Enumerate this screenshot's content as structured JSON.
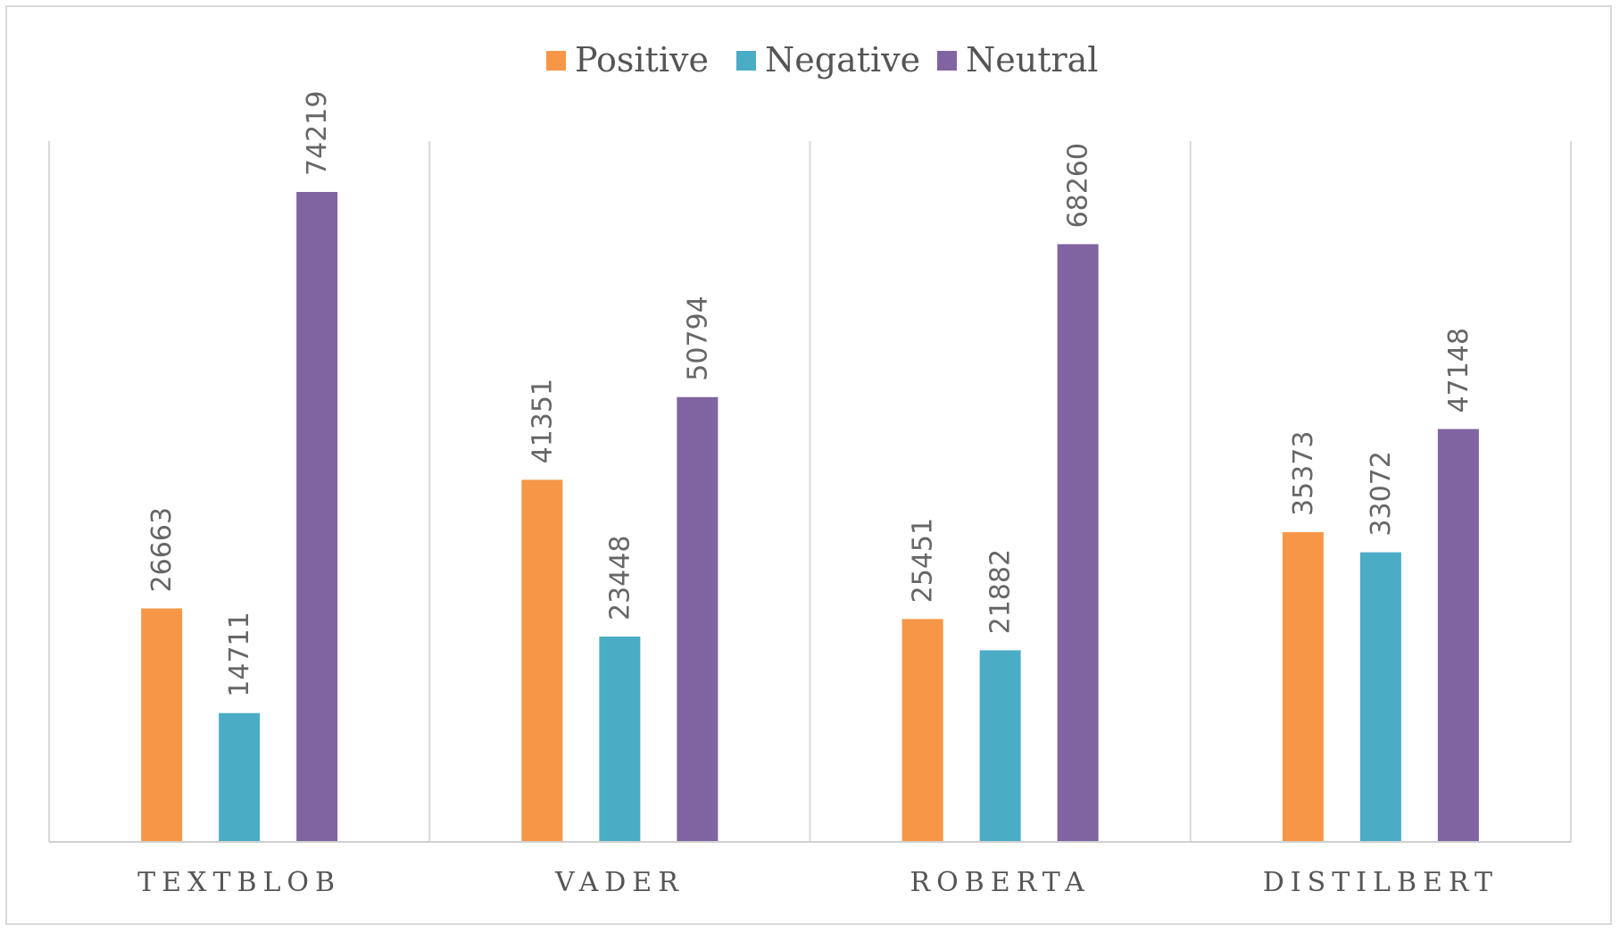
{
  "chart_data": {
    "type": "bar",
    "categories": [
      "TEXTBLOB",
      "VADER",
      "ROBERTA",
      "DISTILBERT"
    ],
    "series": [
      {
        "name": "Positive",
        "color": "#f79646",
        "values": [
          26663,
          41351,
          25451,
          35373
        ]
      },
      {
        "name": "Negative",
        "color": "#4bacc6",
        "values": [
          14711,
          23448,
          21882,
          33072
        ]
      },
      {
        "name": "Neutral",
        "color": "#8064a2",
        "values": [
          74219,
          50794,
          68260,
          47148
        ]
      }
    ],
    "ylim": [
      0,
      80000
    ],
    "grid": false,
    "legend": "top-center",
    "title": "",
    "xlabel": "",
    "ylabel": ""
  }
}
